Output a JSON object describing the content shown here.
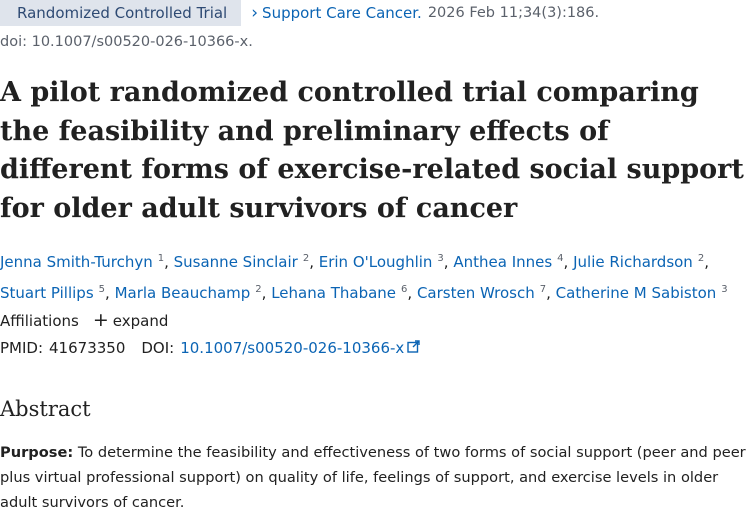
{
  "header": {
    "pub_type": "Randomized Controlled Trial",
    "journal": "Support Care Cancer.",
    "citation": "2026 Feb 11;34(3):186.",
    "doi_line": "doi: 10.1007/s00520-026-10366-x."
  },
  "title": "A pilot randomized controlled trial comparing the feasibility and preliminary effects of different forms of exercise-related social support for older adult survivors of cancer",
  "authors": [
    {
      "name": "Jenna Smith-Turchyn",
      "aff": "1"
    },
    {
      "name": "Susanne Sinclair",
      "aff": "2"
    },
    {
      "name": "Erin O'Loughlin",
      "aff": "3"
    },
    {
      "name": "Anthea Innes",
      "aff": "4"
    },
    {
      "name": "Julie Richardson",
      "aff": "2"
    },
    {
      "name": "Stuart Pillips",
      "aff": "5"
    },
    {
      "name": "Marla Beauchamp",
      "aff": "2"
    },
    {
      "name": "Lehana Thabane",
      "aff": "6"
    },
    {
      "name": "Carsten Wrosch",
      "aff": "7"
    },
    {
      "name": "Catherine M Sabiston",
      "aff": "3"
    }
  ],
  "affiliations": {
    "label": "Affiliations",
    "expand_label": "expand"
  },
  "ids": {
    "pmid_label": "PMID:",
    "pmid": "41673350",
    "doi_label": "DOI:",
    "doi": "10.1007/s00520-026-10366-x"
  },
  "abstract": {
    "heading": "Abstract",
    "purpose_label": "Purpose:",
    "purpose_text": "To determine the feasibility and effectiveness of two forms of social support (peer and peer plus virtual professional support) on quality of life, feelings of support, and exercise levels in older adult survivors of cancer."
  },
  "icons": {
    "chevron": "chevron-right-icon",
    "external": "external-link-icon",
    "plus": "plus-icon"
  },
  "colors": {
    "link": "#0b64b4",
    "badge_bg": "#dfe4ec",
    "badge_text": "#2e4a73",
    "muted": "#5b616b"
  }
}
